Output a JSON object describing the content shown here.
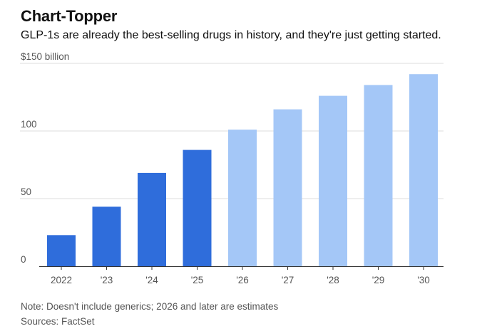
{
  "header": {
    "title": "Chart-Topper",
    "subtitle": "GLP-1s are already the best-selling drugs in history, and they're just getting started."
  },
  "chart_data": {
    "type": "bar",
    "title": "Chart-Topper",
    "subtitle": "GLP-1s are already the best-selling drugs in history, and they're just getting started.",
    "categories": [
      "2022",
      "'23",
      "'24",
      "'25",
      "'26",
      "'27",
      "'28",
      "'29",
      "'30"
    ],
    "values": [
      23,
      44,
      69,
      86,
      101,
      116,
      126,
      134,
      142
    ],
    "estimated": [
      false,
      false,
      false,
      false,
      true,
      true,
      true,
      true,
      true
    ],
    "ylim": [
      0,
      150
    ],
    "y_ticks": [
      {
        "value": 0,
        "label": "0"
      },
      {
        "value": 50,
        "label": "50"
      },
      {
        "value": 100,
        "label": "100"
      },
      {
        "value": 150,
        "label": "$150 billion"
      }
    ],
    "xlabel": "",
    "ylabel": "",
    "grid": true,
    "colors": {
      "actual": "#2f6ddb",
      "estimate": "#a4c7f7",
      "grid": "#dddddd",
      "axis": "#333333"
    }
  },
  "footer": {
    "note": "Note: Doesn't include generics; 2026 and later are estimates",
    "source": "Sources: FactSet"
  }
}
